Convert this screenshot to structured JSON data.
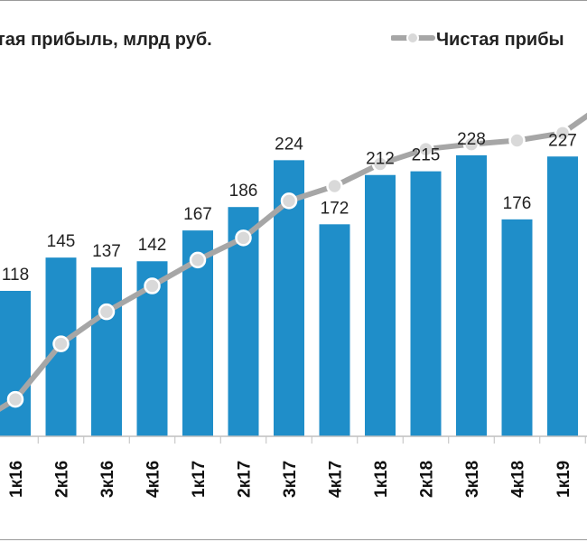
{
  "chart_data": {
    "type": "bar",
    "title": "тая прибыль, млрд руб.",
    "categories": [
      "1к16",
      "2к16",
      "3к16",
      "4к16",
      "1к17",
      "2к17",
      "3к17",
      "4к17",
      "1к18",
      "2к18",
      "3к18",
      "4к18",
      "1к19"
    ],
    "series": [
      {
        "values": [
          118,
          145,
          137,
          142,
          167,
          186,
          224,
          172,
          212,
          215,
          228,
          176,
          227
        ],
        "color": "#1f8ec9"
      },
      {
        "name": "Чистая прибы",
        "type": "line",
        "values": [
          30,
          75,
          101,
          122,
          143,
          161,
          191,
          203,
          221,
          233,
          237,
          240,
          246
        ],
        "color": "#a6a6a6"
      }
    ],
    "ylim": [
      0,
      310
    ],
    "grid": false,
    "legend": "top-right"
  }
}
